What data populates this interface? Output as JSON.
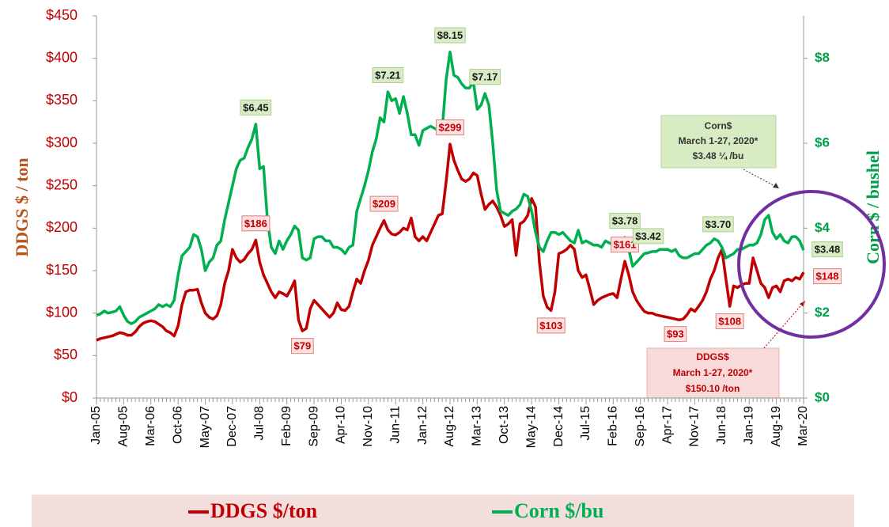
{
  "chart_data": {
    "type": "line",
    "y_label": "DDGS $ / ton",
    "y2_label": "Corn $ / bushel",
    "categories": [
      "Jan-05",
      null,
      null,
      null,
      null,
      null,
      null,
      "Aug-05",
      null,
      null,
      null,
      null,
      null,
      null,
      "Mar-06",
      null,
      null,
      null,
      null,
      null,
      null,
      "Oct-06",
      null,
      null,
      null,
      null,
      null,
      null,
      "May-07",
      null,
      null,
      null,
      null,
      null,
      null,
      "Dec-07",
      null,
      null,
      null,
      null,
      null,
      null,
      "Jul-08",
      null,
      null,
      null,
      null,
      null,
      null,
      "Feb-09",
      null,
      null,
      null,
      null,
      null,
      null,
      "Sep-09",
      null,
      null,
      null,
      null,
      null,
      null,
      "Apr-10",
      null,
      null,
      null,
      null,
      null,
      null,
      "Nov-10",
      null,
      null,
      null,
      null,
      null,
      null,
      "Jun-11",
      null,
      null,
      null,
      null,
      null,
      null,
      "Jan-12",
      null,
      null,
      null,
      null,
      null,
      null,
      "Aug-12",
      null,
      null,
      null,
      null,
      null,
      null,
      "Mar-13",
      null,
      null,
      null,
      null,
      null,
      null,
      "Oct-13",
      null,
      null,
      null,
      null,
      null,
      null,
      "May-14",
      null,
      null,
      null,
      null,
      null,
      null,
      "Dec-14",
      null,
      null,
      null,
      null,
      null,
      null,
      "Jul-15",
      null,
      null,
      null,
      null,
      null,
      null,
      "Feb-16",
      null,
      null,
      null,
      null,
      null,
      null,
      "Sep-16",
      null,
      null,
      null,
      null,
      null,
      null,
      "Apr-17",
      null,
      null,
      null,
      null,
      null,
      null,
      "Nov-17",
      null,
      null,
      null,
      null,
      null,
      null,
      "Jun-18",
      null,
      null,
      null,
      null,
      null,
      null,
      "Jan-19",
      null,
      null,
      null,
      null,
      null,
      null,
      "Aug-19",
      null,
      null,
      null,
      null,
      null,
      null,
      "Mar-20"
    ],
    "series": [
      {
        "name": "DDGS $/ton",
        "color": "#c00000",
        "axis": "y",
        "values": [
          68,
          70,
          71,
          72,
          73,
          75,
          77,
          76,
          74,
          74,
          78,
          84,
          88,
          90,
          91,
          90,
          87,
          84,
          79,
          77,
          73,
          85,
          110,
          125,
          127,
          127,
          128,
          112,
          100,
          95,
          93,
          97,
          110,
          135,
          150,
          175,
          165,
          160,
          163,
          170,
          175,
          186,
          160,
          145,
          135,
          125,
          118,
          125,
          123,
          120,
          128,
          138,
          92,
          79,
          82,
          105,
          115,
          110,
          105,
          100,
          95,
          100,
          112,
          104,
          103,
          108,
          125,
          140,
          135,
          150,
          162,
          180,
          190,
          200,
          209,
          198,
          193,
          192,
          195,
          200,
          198,
          212,
          190,
          185,
          190,
          185,
          195,
          205,
          215,
          217,
          255,
          299,
          280,
          268,
          258,
          255,
          258,
          265,
          262,
          240,
          222,
          228,
          232,
          225,
          215,
          202,
          205,
          210,
          168,
          205,
          208,
          215,
          235,
          225,
          160,
          120,
          107,
          103,
          125,
          170,
          172,
          175,
          180,
          175,
          150,
          142,
          145,
          128,
          110,
          115,
          118,
          120,
          122,
          123,
          118,
          140,
          161,
          145,
          125,
          115,
          108,
          102,
          100,
          100,
          98,
          97,
          96,
          95,
          94,
          93,
          92,
          93,
          98,
          105,
          102,
          108,
          115,
          125,
          140,
          150,
          165,
          175,
          140,
          108,
          132,
          130,
          133,
          135,
          135,
          165,
          150,
          135,
          130,
          118,
          130,
          132,
          125,
          138,
          140,
          138,
          142,
          140,
          148
        ],
        "value_labels": [
          null,
          null,
          null,
          null,
          null,
          null,
          null,
          null,
          null,
          null,
          null,
          null,
          null,
          null,
          null,
          null,
          null,
          null,
          null,
          null,
          null,
          null,
          null,
          null,
          null,
          null,
          null,
          null,
          null,
          null,
          null,
          null,
          null,
          null,
          null,
          null,
          null,
          null,
          null,
          null,
          null,
          "$186",
          null,
          null,
          null,
          null,
          null,
          null,
          null,
          null,
          null,
          null,
          null,
          "$79",
          null,
          null,
          null,
          null,
          null,
          null,
          null,
          null,
          null,
          null,
          null,
          null,
          null,
          null,
          null,
          null,
          null,
          null,
          null,
          null,
          "$209",
          null,
          null,
          null,
          null,
          null,
          null,
          null,
          null,
          null,
          null,
          null,
          null,
          null,
          null,
          null,
          null,
          "$299",
          null,
          null,
          null,
          null,
          null,
          null,
          null,
          null,
          null,
          null,
          null,
          null,
          null,
          null,
          null,
          null,
          null,
          null,
          null,
          null,
          null,
          null,
          null,
          null,
          null,
          "$103",
          null,
          null,
          null,
          null,
          null,
          null,
          null,
          null,
          null,
          null,
          null,
          null,
          null,
          null,
          null,
          null,
          null,
          null,
          "$161",
          null,
          null,
          null,
          null,
          null,
          null,
          null,
          null,
          null,
          null,
          null,
          null,
          "$93",
          null,
          null,
          null,
          null,
          null,
          null,
          null,
          null,
          null,
          null,
          null,
          null,
          null,
          "$108",
          null,
          null,
          null,
          null,
          null,
          null,
          null,
          null,
          null,
          null,
          null,
          null,
          null,
          null,
          null,
          null,
          null,
          null,
          "$148"
        ]
      },
      {
        "name": "Corn $/bu",
        "color": "#00b050",
        "axis": "y2",
        "values": [
          1.95,
          1.98,
          2.05,
          2.0,
          2.02,
          2.05,
          2.15,
          1.95,
          1.8,
          1.75,
          1.8,
          1.9,
          1.95,
          2.0,
          2.05,
          2.1,
          2.2,
          2.15,
          2.2,
          2.15,
          2.3,
          2.9,
          3.35,
          3.45,
          3.55,
          3.85,
          3.8,
          3.5,
          3.0,
          3.2,
          3.3,
          3.6,
          3.7,
          4.2,
          4.6,
          5.0,
          5.4,
          5.6,
          5.65,
          5.9,
          6.1,
          6.45,
          5.4,
          5.45,
          4.2,
          3.55,
          3.4,
          3.7,
          3.5,
          3.7,
          3.85,
          4.05,
          3.95,
          3.3,
          3.25,
          3.3,
          3.75,
          3.8,
          3.8,
          3.7,
          3.7,
          3.55,
          3.55,
          3.5,
          3.4,
          3.55,
          3.6,
          4.4,
          4.7,
          5.0,
          5.35,
          5.8,
          6.1,
          6.6,
          6.5,
          7.21,
          7.0,
          7.05,
          6.7,
          7.1,
          6.7,
          6.2,
          6.2,
          5.95,
          6.3,
          6.35,
          6.4,
          6.35,
          6.3,
          6.35,
          7.5,
          8.15,
          7.6,
          7.55,
          7.4,
          7.3,
          7.3,
          7.45,
          6.8,
          6.9,
          7.17,
          6.9,
          6.0,
          4.9,
          4.4,
          4.35,
          4.3,
          4.4,
          4.45,
          4.55,
          4.8,
          4.75,
          4.4,
          3.9,
          3.55,
          3.45,
          3.7,
          3.9,
          3.9,
          3.85,
          3.9,
          3.8,
          3.7,
          3.65,
          3.95,
          3.65,
          3.7,
          3.65,
          3.6,
          3.6,
          3.55,
          3.7,
          3.65,
          3.62,
          3.6,
          3.7,
          3.78,
          3.5,
          3.1,
          3.2,
          3.3,
          3.4,
          3.42,
          3.45,
          3.45,
          3.5,
          3.5,
          3.5,
          3.45,
          3.5,
          3.35,
          3.3,
          3.3,
          3.35,
          3.4,
          3.4,
          3.5,
          3.6,
          3.65,
          3.75,
          3.7,
          3.55,
          3.3,
          3.35,
          3.4,
          3.5,
          3.5,
          3.55,
          3.6,
          3.6,
          3.65,
          3.85,
          4.2,
          4.3,
          3.9,
          3.75,
          3.85,
          3.7,
          3.65,
          3.8,
          3.8,
          3.7,
          3.48
        ],
        "value_labels": [
          null,
          null,
          null,
          null,
          null,
          null,
          null,
          null,
          null,
          null,
          null,
          null,
          null,
          null,
          null,
          null,
          null,
          null,
          null,
          null,
          null,
          null,
          null,
          null,
          null,
          null,
          null,
          null,
          null,
          null,
          null,
          null,
          null,
          null,
          null,
          null,
          null,
          null,
          null,
          null,
          null,
          "$6.45",
          null,
          null,
          null,
          null,
          null,
          null,
          null,
          null,
          null,
          null,
          null,
          null,
          null,
          null,
          null,
          null,
          null,
          null,
          null,
          null,
          null,
          null,
          null,
          null,
          null,
          null,
          null,
          null,
          null,
          null,
          null,
          null,
          null,
          "$7.21",
          null,
          null,
          null,
          null,
          null,
          null,
          null,
          null,
          null,
          null,
          null,
          null,
          null,
          null,
          null,
          "$8.15",
          null,
          null,
          null,
          null,
          null,
          null,
          null,
          null,
          "$7.17",
          null,
          null,
          null,
          null,
          null,
          null,
          null,
          null,
          null,
          null,
          null,
          null,
          null,
          null,
          null,
          null,
          null,
          null,
          null,
          null,
          null,
          null,
          null,
          null,
          null,
          null,
          null,
          null,
          null,
          null,
          null,
          null,
          null,
          null,
          null,
          "$3.78",
          null,
          null,
          null,
          null,
          null,
          "$3.42",
          null,
          null,
          null,
          null,
          null,
          null,
          null,
          null,
          null,
          null,
          null,
          null,
          null,
          null,
          null,
          null,
          null,
          "$3.70",
          null,
          null,
          null,
          null,
          null,
          null,
          null,
          null,
          null,
          null,
          null,
          null,
          null,
          null,
          null,
          null,
          null,
          null,
          null,
          null,
          null,
          "$3.48"
        ]
      }
    ],
    "ylim": [
      0,
      450
    ],
    "yticks": [
      {
        "value": 0,
        "label": "$0"
      },
      {
        "value": 50,
        "label": "$50"
      },
      {
        "value": 100,
        "label": "$100"
      },
      {
        "value": 150,
        "label": "$150"
      },
      {
        "value": 200,
        "label": "$200"
      },
      {
        "value": 250,
        "label": "$250"
      },
      {
        "value": 300,
        "label": "$300"
      },
      {
        "value": 350,
        "label": "$350"
      },
      {
        "value": 400,
        "label": "$400"
      },
      {
        "value": 450,
        "label": "$450"
      }
    ],
    "y2lim": [
      0,
      9
    ],
    "y2ticks": [
      {
        "value": 0,
        "label": "$0"
      },
      {
        "value": 2,
        "label": "$2"
      },
      {
        "value": 4,
        "label": "$4"
      },
      {
        "value": 6,
        "label": "$6"
      },
      {
        "value": 8,
        "label": "$8"
      }
    ],
    "annotations": [
      {
        "lines": [
          "Corn$",
          "March 1-27, 2020*",
          "$3.48 ¼ /bu"
        ]
      },
      {
        "lines": [
          "DDGS$",
          "March 1-27, 2020*",
          "$150.10 /ton"
        ]
      }
    ],
    "grid": false
  }
}
